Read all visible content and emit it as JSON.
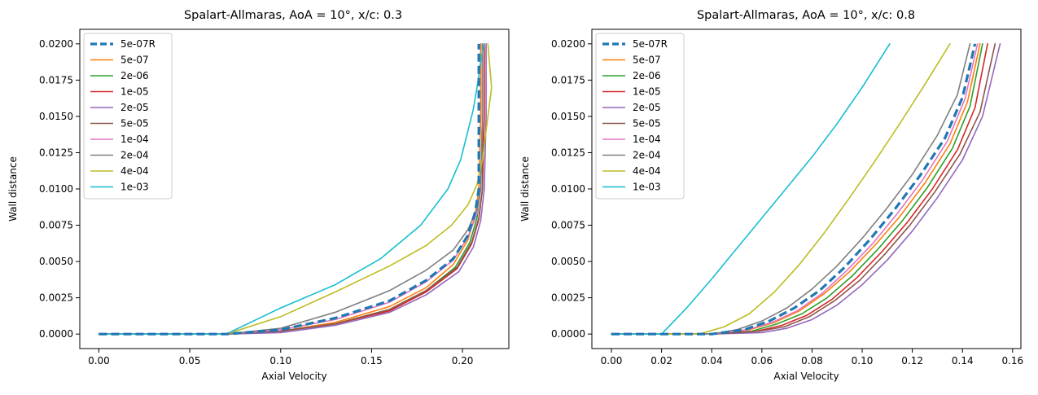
{
  "chart_data": [
    {
      "type": "line",
      "title": "Spalart-Allmaras, AoA = 10°, x/c: 0.3",
      "xlabel": "Axial Velocity",
      "ylabel": "Wall distance",
      "xlim": [
        -0.0105,
        0.2255
      ],
      "ylim": [
        -0.001,
        0.021
      ],
      "xticks": [
        0.0,
        0.05,
        0.1,
        0.15,
        0.2
      ],
      "xtick_labels": [
        "0.00",
        "0.05",
        "0.10",
        "0.15",
        "0.20"
      ],
      "yticks": [
        0.0,
        0.0025,
        0.005,
        0.0075,
        0.01,
        0.0125,
        0.015,
        0.0175,
        0.02
      ],
      "ytick_labels": [
        "0.0000",
        "0.0025",
        "0.0050",
        "0.0075",
        "0.0100",
        "0.0125",
        "0.0150",
        "0.0175",
        "0.0200"
      ],
      "legend_position": "top-left",
      "series": [
        {
          "name": "5e-07",
          "color": "#ff7f0e",
          "dashed": false,
          "x": [
            0.0,
            0.07,
            0.1,
            0.13,
            0.16,
            0.18,
            0.195,
            0.203,
            0.207,
            0.209,
            0.21,
            0.21
          ],
          "y": [
            0.0,
            0.0,
            0.0002,
            0.0008,
            0.0019,
            0.0032,
            0.0048,
            0.0065,
            0.0082,
            0.01,
            0.015,
            0.02
          ]
        },
        {
          "name": "2e-06",
          "color": "#2ca02c",
          "dashed": false,
          "x": [
            0.0,
            0.07,
            0.1,
            0.13,
            0.16,
            0.18,
            0.196,
            0.204,
            0.208,
            0.21,
            0.211,
            0.211
          ],
          "y": [
            0.0,
            0.0,
            0.0002,
            0.0007,
            0.0017,
            0.003,
            0.0046,
            0.0063,
            0.008,
            0.01,
            0.015,
            0.02
          ]
        },
        {
          "name": "1e-05",
          "color": "#d62728",
          "dashed": false,
          "x": [
            0.0,
            0.07,
            0.1,
            0.13,
            0.16,
            0.18,
            0.197,
            0.205,
            0.209,
            0.211,
            0.212,
            0.212
          ],
          "y": [
            0.0,
            0.0,
            0.0002,
            0.0007,
            0.0016,
            0.0029,
            0.0045,
            0.0062,
            0.0079,
            0.01,
            0.015,
            0.02
          ]
        },
        {
          "name": "2e-05",
          "color": "#9467bd",
          "dashed": false,
          "x": [
            0.0,
            0.07,
            0.1,
            0.13,
            0.16,
            0.18,
            0.198,
            0.206,
            0.21,
            0.212,
            0.213,
            0.213
          ],
          "y": [
            0.0,
            0.0,
            0.0001,
            0.0006,
            0.0015,
            0.0027,
            0.0043,
            0.006,
            0.0078,
            0.01,
            0.015,
            0.02
          ]
        },
        {
          "name": "5e-05",
          "color": "#8c564b",
          "dashed": false,
          "x": [
            0.0,
            0.07,
            0.1,
            0.13,
            0.16,
            0.18,
            0.197,
            0.205,
            0.209,
            0.211,
            0.211,
            0.211
          ],
          "y": [
            0.0,
            0.0,
            0.0002,
            0.0007,
            0.0017,
            0.003,
            0.0046,
            0.0063,
            0.008,
            0.01,
            0.015,
            0.02
          ]
        },
        {
          "name": "1e-04",
          "color": "#e377c2",
          "dashed": false,
          "x": [
            0.0,
            0.07,
            0.1,
            0.13,
            0.16,
            0.18,
            0.195,
            0.203,
            0.208,
            0.21,
            0.211,
            0.211
          ],
          "y": [
            0.0,
            0.0,
            0.0003,
            0.001,
            0.0022,
            0.0036,
            0.0051,
            0.0067,
            0.0083,
            0.01,
            0.015,
            0.02
          ]
        },
        {
          "name": "2e-04",
          "color": "#7f7f7f",
          "dashed": false,
          "x": [
            0.0,
            0.07,
            0.1,
            0.13,
            0.16,
            0.18,
            0.195,
            0.203,
            0.208,
            0.21,
            0.211,
            0.211
          ],
          "y": [
            0.0,
            0.0,
            0.0004,
            0.0015,
            0.003,
            0.0044,
            0.0058,
            0.0072,
            0.0086,
            0.01,
            0.015,
            0.02
          ]
        },
        {
          "name": "4e-04",
          "color": "#bcbd22",
          "dashed": false,
          "x": [
            0.0,
            0.07,
            0.1,
            0.13,
            0.16,
            0.18,
            0.194,
            0.203,
            0.208,
            0.211,
            0.214,
            0.216,
            0.214
          ],
          "y": [
            0.0,
            0.0,
            0.0012,
            0.0029,
            0.0047,
            0.0061,
            0.0075,
            0.0089,
            0.0103,
            0.012,
            0.015,
            0.017,
            0.02
          ]
        },
        {
          "name": "1e-03",
          "color": "#17becf",
          "dashed": false,
          "x": [
            0.0,
            0.07,
            0.1,
            0.13,
            0.155,
            0.177,
            0.192,
            0.199,
            0.203,
            0.206,
            0.208,
            0.209,
            0.21,
            0.211,
            0.212
          ],
          "y": [
            0.0,
            0.0,
            0.0018,
            0.0034,
            0.0052,
            0.0075,
            0.01,
            0.012,
            0.014,
            0.0155,
            0.017,
            0.0178,
            0.0188,
            0.0195,
            0.02
          ]
        },
        {
          "name": "5e-07R",
          "color": "#1f77b4",
          "dashed": true,
          "x": [
            0.0,
            0.07,
            0.1,
            0.13,
            0.16,
            0.18,
            0.195,
            0.203,
            0.207,
            0.209,
            0.209,
            0.209
          ],
          "y": [
            0.0,
            0.0,
            0.0003,
            0.0011,
            0.0023,
            0.0037,
            0.0052,
            0.0068,
            0.0084,
            0.01,
            0.015,
            0.02
          ]
        }
      ]
    },
    {
      "type": "line",
      "title": "Spalart-Allmaras, AoA = 10°, x/c: 0.8",
      "xlabel": "Axial Velocity",
      "ylabel": "Wall distance",
      "xlim": [
        -0.0078,
        0.1633
      ],
      "ylim": [
        -0.001,
        0.021
      ],
      "xticks": [
        0.0,
        0.02,
        0.04,
        0.06,
        0.08,
        0.1,
        0.12,
        0.14,
        0.16
      ],
      "xtick_labels": [
        "0.00",
        "0.02",
        "0.04",
        "0.06",
        "0.08",
        "0.10",
        "0.12",
        "0.14",
        "0.16"
      ],
      "yticks": [
        0.0,
        0.0025,
        0.005,
        0.0075,
        0.01,
        0.0125,
        0.015,
        0.0175,
        0.02
      ],
      "ytick_labels": [
        "0.0000",
        "0.0025",
        "0.0050",
        "0.0075",
        "0.0100",
        "0.0125",
        "0.0150",
        "0.0175",
        "0.0200"
      ],
      "legend_position": "top-left",
      "series": [
        {
          "name": "5e-07",
          "color": "#ff7f0e",
          "dashed": false,
          "x": [
            0.0,
            0.04,
            0.055,
            0.065,
            0.075,
            0.085,
            0.095,
            0.105,
            0.115,
            0.125,
            0.135,
            0.142,
            0.147
          ],
          "y": [
            0.0,
            0.0,
            0.0003,
            0.0008,
            0.0016,
            0.0028,
            0.0043,
            0.0061,
            0.0081,
            0.0104,
            0.0131,
            0.016,
            0.02
          ]
        },
        {
          "name": "2e-06",
          "color": "#2ca02c",
          "dashed": false,
          "x": [
            0.0,
            0.04,
            0.056,
            0.066,
            0.076,
            0.086,
            0.096,
            0.106,
            0.116,
            0.126,
            0.136,
            0.143,
            0.148
          ],
          "y": [
            0.0,
            0.0,
            0.0002,
            0.0007,
            0.0014,
            0.0025,
            0.004,
            0.0058,
            0.0078,
            0.0101,
            0.0128,
            0.0157,
            0.02
          ]
        },
        {
          "name": "1e-05",
          "color": "#d62728",
          "dashed": false,
          "x": [
            0.0,
            0.04,
            0.058,
            0.068,
            0.078,
            0.088,
            0.098,
            0.108,
            0.118,
            0.128,
            0.138,
            0.145,
            0.15
          ],
          "y": [
            0.0,
            0.0,
            0.0002,
            0.0006,
            0.0013,
            0.0024,
            0.0039,
            0.0057,
            0.0077,
            0.01,
            0.0127,
            0.0156,
            0.02
          ]
        },
        {
          "name": "2e-05",
          "color": "#9467bd",
          "dashed": false,
          "x": [
            0.0,
            0.04,
            0.06,
            0.07,
            0.08,
            0.09,
            0.1,
            0.11,
            0.12,
            0.13,
            0.14,
            0.148,
            0.155
          ],
          "y": [
            0.0,
            0.0,
            0.0001,
            0.0004,
            0.001,
            0.002,
            0.0034,
            0.0051,
            0.0071,
            0.0094,
            0.012,
            0.015,
            0.02
          ]
        },
        {
          "name": "5e-05",
          "color": "#8c564b",
          "dashed": false,
          "x": [
            0.0,
            0.04,
            0.059,
            0.069,
            0.079,
            0.089,
            0.099,
            0.109,
            0.119,
            0.129,
            0.139,
            0.147,
            0.153
          ],
          "y": [
            0.0,
            0.0,
            0.0002,
            0.0005,
            0.0012,
            0.0023,
            0.0037,
            0.0055,
            0.0075,
            0.0098,
            0.0124,
            0.0153,
            0.02
          ]
        },
        {
          "name": "1e-04",
          "color": "#e377c2",
          "dashed": false,
          "x": [
            0.0,
            0.04,
            0.054,
            0.064,
            0.074,
            0.084,
            0.094,
            0.104,
            0.114,
            0.124,
            0.134,
            0.141,
            0.146
          ],
          "y": [
            0.0,
            0.0,
            0.0003,
            0.0008,
            0.0016,
            0.0028,
            0.0044,
            0.0062,
            0.0083,
            0.0106,
            0.0133,
            0.0162,
            0.02
          ]
        },
        {
          "name": "2e-04",
          "color": "#7f7f7f",
          "dashed": false,
          "x": [
            0.0,
            0.04,
            0.05,
            0.06,
            0.07,
            0.08,
            0.09,
            0.1,
            0.11,
            0.12,
            0.13,
            0.138,
            0.143
          ],
          "y": [
            0.0,
            0.0,
            0.0003,
            0.0009,
            0.0018,
            0.0031,
            0.0047,
            0.0066,
            0.0087,
            0.011,
            0.0137,
            0.0165,
            0.02
          ]
        },
        {
          "name": "4e-04",
          "color": "#bcbd22",
          "dashed": false,
          "x": [
            0.0,
            0.035,
            0.045,
            0.055,
            0.065,
            0.075,
            0.085,
            0.095,
            0.105,
            0.115,
            0.125,
            0.135
          ],
          "y": [
            0.0,
            0.0,
            0.0005,
            0.0014,
            0.0029,
            0.0048,
            0.007,
            0.0094,
            0.0119,
            0.0145,
            0.0172,
            0.02
          ]
        },
        {
          "name": "1e-03",
          "color": "#17becf",
          "dashed": false,
          "x": [
            0.0,
            0.02,
            0.03,
            0.04,
            0.05,
            0.06,
            0.07,
            0.08,
            0.09,
            0.1,
            0.111
          ],
          "y": [
            0.0,
            0.0,
            0.0018,
            0.0038,
            0.0059,
            0.008,
            0.0101,
            0.0122,
            0.0145,
            0.017,
            0.02
          ]
        },
        {
          "name": "5e-07R",
          "color": "#1f77b4",
          "dashed": true,
          "x": [
            0.0,
            0.04,
            0.053,
            0.063,
            0.073,
            0.083,
            0.093,
            0.103,
            0.113,
            0.123,
            0.133,
            0.14,
            0.145
          ],
          "y": [
            0.0,
            0.0,
            0.0003,
            0.0009,
            0.0018,
            0.003,
            0.0046,
            0.0065,
            0.0086,
            0.0109,
            0.0135,
            0.0163,
            0.02
          ]
        }
      ]
    }
  ],
  "legend_order": [
    "5e-07R",
    "5e-07",
    "2e-06",
    "1e-05",
    "2e-05",
    "5e-05",
    "1e-04",
    "2e-04",
    "4e-04",
    "1e-03"
  ]
}
